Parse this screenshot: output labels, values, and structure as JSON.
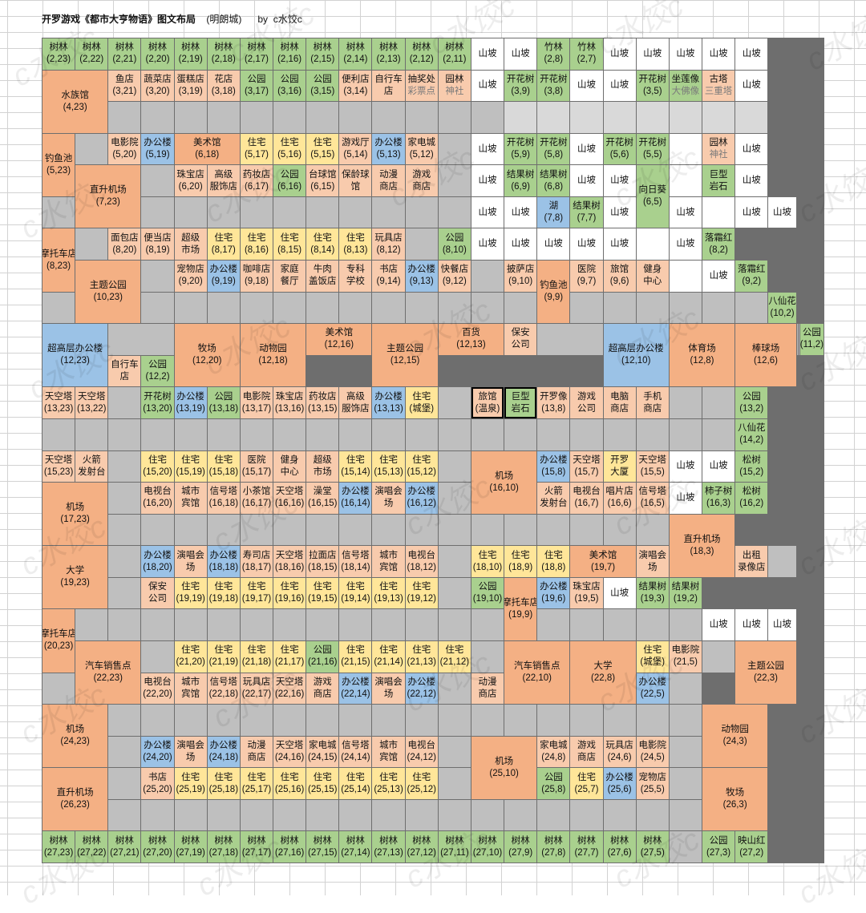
{
  "header": {
    "title": "开罗游戏《都市大亨物语》图文布局",
    "sub": "(明朗城)",
    "by": "by  c水饺c"
  },
  "watermark": "c水饺c",
  "colors": {
    "green": "#a9d08e",
    "yellow": "#ffe699",
    "orange": "#f4b084",
    "peach": "#f8cbad",
    "blue": "#9bc2e6",
    "gray": "#bfbfbf",
    "lgray": "#d9d9d9",
    "white": "#ffffff"
  },
  "legend": {
    "g": "green",
    "y": "yellow",
    "o": "orange",
    "p": "peach",
    "b": "blue",
    "x": "gray",
    "l": "lightgray",
    "w": "white"
  },
  "rows": [
    [
      "g|树林\n(2,23)",
      "g|树林\n(2,22)",
      "g|树林\n(2,21)",
      "g|树林\n(2,20)",
      "g|树林\n(2,19)",
      "g|树林\n(2,18)",
      "g|树林\n(2,17)",
      "g|树林\n(2,16)",
      "g|树林\n(2,15)",
      "g|树林\n(2,14)",
      "g|树林\n(2,13)",
      "g|树林\n(2,12)",
      "g|树林\n(2,11)",
      "w|山坡",
      "w|山坡",
      "g|竹林\n(2,8)",
      "g|竹林\n(2,7)",
      "w|山坡",
      "w|山坡",
      "w|山坡",
      "w|山坡",
      "w|山坡"
    ],
    [
      "o|水族馆\n(4,23)|2x2",
      "p|鱼店\n(3,21)",
      "p|蔬菜店\n(3,20)",
      "p|蛋糕店\n(3,19)",
      "p|花店\n(3,18)",
      "g|公园\n(3,17)",
      "g|公园\n(3,16)",
      "g|公园\n(3,15)",
      "p|便利店\n(3,14)",
      "p|自行车\n店",
      "p|抽奖处\n~彩票点",
      "p|园林\n~神社",
      "w|山坡",
      "g|开花树\n(3,9)",
      "g|开花树\n(3,8)",
      "w|山坡",
      "w|山坡",
      "g|开花树\n(3,5)",
      "g|坐莲像\n~大佛像",
      "p|古塔\n~三重塔",
      "w|山坡"
    ],
    [
      "x|",
      "x|",
      "x|",
      "x|",
      "x|",
      "x|",
      "x|",
      "x|",
      "x|",
      "x|",
      "x|",
      "x|",
      "l|",
      "l|",
      "l|",
      "l|",
      "l|",
      "l|",
      "l|",
      "l|"
    ],
    [
      "o|钓鱼池\n(5,23)|2x1",
      "x|",
      "p|电影院\n(5,20)",
      "b|办公楼\n(5,19)",
      "o|美术馆\n(6,18)|1x2",
      "y|住宅\n(5,17)",
      "y|住宅\n(5,16)",
      "y|住宅\n(5,15)",
      "p|游戏厅\n(5,14)",
      "b|办公楼\n(5,13)",
      "p|家电城\n(5,12)",
      "x|",
      "w|山坡",
      "g|开花树\n(5,9)",
      "g|开花树\n(5,8)",
      "w|山坡",
      "g|开花树\n(5,6)",
      "g|开花树\n(5,5)",
      "w|",
      "p|园林\n~神社",
      "w|山坡"
    ],
    [
      "o|直升机场\n(7,23)|2x2",
      "x|",
      "p|珠宝店\n(6,20)",
      "p|高级\n服饰店",
      "p|药妆店\n(6,17)",
      "g|公园\n(6,16)",
      "p|台球馆\n(6,15)",
      "p|保龄球\n馆",
      "p|动漫\n商店",
      "p|游戏\n商店",
      "x|",
      "w|山坡",
      "g|结果树\n(6,9)",
      "g|结果树\n(6,8)",
      "w|山坡",
      "w|山坡",
      "g|向日葵\n(6,5)|2x1",
      "w|",
      "g|巨型\n岩石",
      "w|山坡"
    ],
    [
      "x|",
      "x|",
      "x|",
      "x|",
      "x|",
      "x|",
      "x|",
      "x|",
      "x|",
      "x|",
      "x|",
      "w|山坡",
      "w|山坡",
      "b|湖\n(7,8)",
      "g|结果树\n(7,7)",
      "w|山坡",
      "w|山坡",
      "w|",
      "w|山坡",
      "w|山坡"
    ],
    [
      "o|摩托车店\n(8,23)|2x1",
      "x|",
      "p|面包店\n(8,20)",
      "p|便当店\n(8,19)",
      "p|超级\n市场",
      "y|住宅\n(8,17)",
      "y|住宅\n(8,16)",
      "y|住宅\n(8,15)",
      "y|住宅\n(8,14)",
      "y|住宅\n(8,13)",
      "p|玩具店\n(8,12)",
      "x|",
      "g|公园\n(8,10)",
      "w|山坡",
      "w|山坡",
      "w|山坡",
      "w|山坡",
      "w|山坡",
      "w|",
      "w|山坡",
      "g|落霜红\n(8,2)"
    ],
    [
      "o|主题公园\n(10,23)|2x2",
      "x|",
      "p|宠物店\n(9,20)",
      "b|办公楼\n(9,19)",
      "p|咖啡店\n(9,18)",
      "p|家庭\n餐厅",
      "p|牛肉\n盖饭店",
      "p|专科\n学校",
      "p|书店\n(9,14)",
      "b|办公楼\n(9,13)",
      "p|快餐店\n(9,12)",
      "x|",
      "p|披萨店\n(9,10)",
      "o|钓鱼池\n(9,9)|2x1",
      "p|医院\n(9,7)",
      "p|旅馆\n(9,6)",
      "p|健身\n中心",
      "w|",
      "w|山坡",
      "g|落霜红\n(9,2)"
    ],
    [
      "x|",
      "x|",
      "x|",
      "x|",
      "x|",
      "x|",
      "x|",
      "x|",
      "x|",
      "x|",
      "x|",
      "x|",
      "x|",
      "x|",
      "x|",
      "x|",
      "x|",
      "x|",
      "x|",
      "g|八仙花\n(10,2)"
    ],
    [
      "b|超高层办公楼\n(12,23)|2x2",
      "x||1x2",
      "o|牧场\n(12,20)|2x2",
      "o|动物园\n(12,18)|2x2",
      "o|美术馆\n(12,16)|1x2",
      "o|主题公园\n(12,15)|2x2",
      "o|百货\n(12,13)|1x2",
      "p|保安\n公司",
      "x||1x2",
      "b|超高层办公楼\n(12,10)|2x2",
      "o|体育场\n(12,8)|2x2",
      "o|棒球场\n(12,6)|2x2",
      "x||1x2",
      "x||1x2",
      "g|公园\n(11,2)"
    ],
    [
      "p|自行车\n店",
      "g|公园\n(12,2)"
    ],
    [
      "p|天空塔\n(13,23)",
      "p|天空塔\n(13,22)",
      "x|",
      "g|开花树\n(13,20)",
      "b|办公楼\n(13,19)",
      "g|公园\n(13,18)",
      "p|电影院\n(13,17)",
      "p|珠宝店\n(13,16)",
      "p|药妆店\n(13,15)",
      "p|高级\n服饰店",
      "b|办公楼\n(13,13)",
      "y|住宅\n(城堡)",
      "x|",
      "p*|旅馆\n(温泉)",
      "g*|巨型\n岩石",
      "p|开罗像\n(13,8)",
      "p|游戏\n公司",
      "p|电脑\n商店",
      "p|手机\n商店",
      "x|",
      "x|",
      "g|公园\n(13,2)"
    ],
    [
      "x|",
      "x|",
      "x|",
      "x|",
      "x|",
      "x|",
      "x|",
      "x|",
      "x|",
      "x|",
      "x|",
      "x|",
      "x|",
      "x|",
      "x|",
      "x|",
      "x|",
      "x|",
      "x|",
      "x|",
      "x|",
      "g|八仙花\n(14,2)"
    ],
    [
      "p|天空塔\n(15,23)",
      "p|火箭\n发射台",
      "x|",
      "y|住宅\n(15,20)",
      "y|住宅\n(15,19)",
      "y|住宅\n(15,18)",
      "p|医院\n(15,17)",
      "p|健身\n中心",
      "p|超级\n市场",
      "y|住宅\n(15,14)",
      "y|住宅\n(15,13)",
      "y|住宅\n(15,12)",
      "x|",
      "o|机场\n(16,10)|2x2",
      "b|办公楼\n(15,8)",
      "p|天空塔\n(15,7)",
      "y|开罗\n大厦",
      "p|天空塔\n(15,5)",
      "w|山坡",
      "w|山坡",
      "g|松树\n(15,2)"
    ],
    [
      "o|机场\n(17,23)|2x2",
      "x|",
      "p|电视台\n(16,20)",
      "p|城市\n宾馆",
      "p|信号塔\n(16,18)",
      "p|小茶馆\n(16,17)",
      "p|天空塔\n(16,16)",
      "p|澡堂\n(16,15)",
      "b|办公楼\n(16,14)",
      "p|演唱会\n场",
      "b|办公楼\n(16,12)",
      "x|",
      "p|火箭\n发射台",
      "p|电视台\n(16,7)",
      "p|唱片店\n(16,6)",
      "p|信号塔\n(16,5)",
      "w|山坡",
      "g|柿子树\n(16,3)",
      "g|松树\n(16,2)"
    ],
    [
      "x|",
      "x|",
      "x|",
      "x|",
      "x|",
      "x|",
      "x|",
      "x|",
      "x|",
      "x|",
      "x|",
      "x|",
      "x|",
      "x|",
      "x|",
      "x|",
      "x|",
      "o|直升机场\n(18,3)|2x2"
    ],
    [
      "o|大学\n(19,23)|2x2",
      "x|",
      "b|办公楼\n(18,20)",
      "p|演唱会\n场",
      "b|办公楼\n(18,18)",
      "p|寿司店\n(18,17)",
      "p|天空塔\n(18,16)",
      "p|拉面店\n(18,15)",
      "p|信号塔\n(18,14)",
      "p|城市\n宾馆",
      "p|电视台\n(18,12)",
      "x|",
      "y|住宅\n(18,10)",
      "y|住宅\n(18,9)",
      "y|住宅\n(18,8)",
      "o|美术馆\n(19,7)|1x2",
      "p|演唱会\n场",
      "p|出租\n录像店",
      "x|"
    ],
    [
      "x|",
      "p|保安\n公司",
      "y|住宅\n(19,19)",
      "y|住宅\n(19,18)",
      "y|住宅\n(19,17)",
      "y|住宅\n(19,16)",
      "y|住宅\n(19,15)",
      "y|住宅\n(19,14)",
      "y|住宅\n(19,13)",
      "y|住宅\n(19,12)",
      "x|",
      "g|公园\n(19,10)",
      "o|摩托车店\n(19,9)|2x1",
      "b|办公楼\n(19,6)",
      "p|珠宝店\n(19,5)",
      "w|山坡",
      "g|结果树\n(19,3)",
      "g|结果树\n(19,2)"
    ],
    [
      "o|摩托车店\n(20,23)|2x1",
      "x|",
      "x|",
      "x|",
      "x|",
      "x|",
      "x|",
      "x|",
      "x|",
      "x|",
      "x|",
      "x|",
      "x|",
      "x|",
      "x|",
      "x|",
      "x|",
      "x|",
      "x|",
      "w|山坡",
      "w|山坡",
      "w|山坡"
    ],
    [
      "o|汽车销售点\n(22,23)|2x2",
      "x|",
      "y|住宅\n(21,20)",
      "y|住宅\n(21,19)",
      "y|住宅\n(21,18)",
      "y|住宅\n(21,17)",
      "g|公园\n(21,16)",
      "y|住宅\n(21,15)",
      "y|住宅\n(21,14)",
      "y|住宅\n(21,13)",
      "y|住宅\n(21,12)",
      "x|",
      "o|汽车销售点\n(22,10)|2x2",
      "o|大学\n(22,8)|2x2",
      "y|住宅\n(城堡)",
      "p|电影院\n(21,5)",
      "x|",
      "o|主题公园\n(22,3)|2x2"
    ],
    [
      "x|",
      "p|电视台\n(22,20)",
      "p|城市\n宾馆",
      "p|信号塔\n(22,18)",
      "p|玩具店\n(22,17)",
      "p|天空塔\n(22,16)",
      "p|游戏\n商店",
      "b|办公楼\n(22,14)",
      "p|演唱会\n场",
      "b|办公楼\n(22,12)",
      "x|",
      "p|动漫\n商店",
      "b|办公楼\n(22,5)",
      "x|"
    ],
    [
      "o|机场\n(24,23)|2x2",
      "x|",
      "x|",
      "x|",
      "x|",
      "x|",
      "x|",
      "x|",
      "x|",
      "x|",
      "x|",
      "x|",
      "x|",
      "x|",
      "x|",
      "x|",
      "x|",
      "x|",
      "x|",
      "o|动物园\n(24,3)|2x2"
    ],
    [
      "x|",
      "b|办公楼\n(24,20)",
      "p|演唱会\n场",
      "b|办公楼\n(24,18)",
      "p|动漫\n商店",
      "p|天空塔\n(24,16)",
      "p|家电城\n(24,15)",
      "p|信号塔\n(24,14)",
      "p|城市\n宾馆",
      "p|电视台\n(24,12)",
      "x|",
      "o|机场\n(25,10)|2x2",
      "p|家电城\n(24,8)",
      "p|游戏\n商店",
      "p|玩具店\n(24,6)",
      "p|电影院\n(24,5)",
      "x|"
    ],
    [
      "o|直升机场\n(26,23)|2x2",
      "x|",
      "p|书店\n(25,20)",
      "y|住宅\n(25,19)",
      "y|住宅\n(25,18)",
      "y|住宅\n(25,17)",
      "y|住宅\n(25,16)",
      "y|住宅\n(25,15)",
      "y|住宅\n(25,14)",
      "y|住宅\n(25,13)",
      "y|住宅\n(25,12)",
      "x|",
      "g|公园\n(25,8)",
      "y|住宅\n(25,7)",
      "b|办公楼\n(25,6)",
      "p|宠物店\n(25,5)",
      "x|",
      "o|牧场\n(26,3)|2x2"
    ],
    [
      "x|",
      "x|",
      "x|",
      "x|",
      "x|",
      "x|",
      "x|",
      "x|",
      "x|",
      "x|",
      "x|",
      "x|",
      "x|",
      "x|",
      "x|",
      "x|",
      "x|",
      "x|"
    ],
    [
      "g|树林\n(27,23)",
      "g|树林\n(27,22)",
      "g|树林\n(27,21)",
      "g|树林\n(27,20)",
      "g|树林\n(27,19)",
      "g|树林\n(27,18)",
      "g|树林\n(27,17)",
      "g|树林\n(27,16)",
      "g|树林\n(27,15)",
      "g|树林\n(27,14)",
      "g|树林\n(27,13)",
      "g|树林\n(27,12)",
      "g|树林\n(27,11)",
      "g|树林\n(27,10)",
      "g|树林\n(27,9)",
      "g|树林\n(27,8)",
      "g|树林\n(27,7)",
      "g|树林\n(27,6)",
      "g|树林\n(27,5)",
      "x|",
      "g|公园\n(27,3)",
      "g|映山红\n(27,2)"
    ]
  ]
}
